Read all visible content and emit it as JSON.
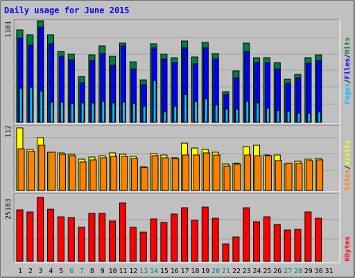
{
  "chart_data": {
    "type": "bar",
    "title": "Daily usage for June 2015",
    "categories": [
      "1",
      "2",
      "3",
      "4",
      "5",
      "6",
      "7",
      "8",
      "9",
      "10",
      "11",
      "12",
      "13",
      "14",
      "15",
      "16",
      "17",
      "18",
      "19",
      "20",
      "21",
      "22",
      "23",
      "24",
      "25",
      "26",
      "27",
      "28",
      "29",
      "30",
      "31"
    ],
    "weekend_days": [
      "6",
      "7",
      "13",
      "14",
      "20",
      "21",
      "27",
      "28"
    ],
    "panels": [
      {
        "name": "hits-files-pages",
        "ymax_label": "1101",
        "legend": [
          {
            "label": "Pages",
            "color": "#00C0FF"
          },
          {
            "label": "Files",
            "color": "#0000FF"
          },
          {
            "label": "Hits",
            "color": "#008040"
          }
        ],
        "series": [
          {
            "name": "Hits",
            "color": "#008040",
            "values": [
              1001,
              948,
              1101,
              953,
              768,
              738,
              500,
              730,
              830,
              713,
              860,
              658,
              458,
              853,
              740,
              703,
              880,
              710,
              870,
              750,
              330,
              560,
              860,
              700,
              700,
              650,
              470,
              520,
              700,
              730,
              0
            ]
          },
          {
            "name": "Files",
            "color": "#0000FF",
            "values": [
              915,
              840,
              1030,
              850,
              720,
              680,
              430,
              670,
              750,
              620,
              830,
              580,
              410,
              810,
              690,
              650,
              810,
              630,
              810,
              690,
              300,
              480,
              770,
              650,
              650,
              580,
              420,
              480,
              640,
              670,
              0
            ]
          },
          {
            "name": "Pages",
            "color": "#00C0FF",
            "values": [
              370,
              380,
              340,
              220,
              220,
              200,
              210,
              210,
              230,
              210,
              220,
              200,
              170,
              450,
              110,
              170,
              300,
              230,
              260,
              190,
              140,
              140,
              230,
              210,
              150,
              130,
              120,
              100,
              100,
              110,
              0
            ]
          }
        ]
      },
      {
        "name": "sites-visits",
        "ymax_label": "112",
        "legend": [
          {
            "label": "Sites",
            "color": "#FF8000"
          },
          {
            "label": "Visits",
            "color": "#FFFF00"
          }
        ],
        "series": [
          {
            "name": "Visits",
            "color": "#FFFF00",
            "values": [
              112,
              73,
              95,
              69,
              67,
              65,
              56,
              60,
              62,
              67,
              65,
              61,
              42,
              66,
              63,
              58,
              84,
              76,
              73,
              69,
              47,
              48,
              78,
              81,
              63,
              63,
              47,
              52,
              56,
              57,
              0
            ]
          },
          {
            "name": "Sites",
            "color": "#FF8000",
            "values": [
              75,
              70,
              81,
              68,
              65,
              62,
              51,
              55,
              59,
              61,
              61,
              57,
              41,
              62,
              58,
              57,
              64,
              64,
              67,
              64,
              44,
              47,
              64,
              62,
              62,
              53,
              49,
              49,
              54,
              55,
              0
            ]
          }
        ]
      },
      {
        "name": "kbytes",
        "ymax_label": "25183",
        "legend": [
          {
            "label": "KBytes",
            "color": "#FF0000"
          }
        ],
        "series": [
          {
            "name": "KBytes",
            "color": "#FF0000",
            "values": [
              20200,
              19400,
              25183,
              20600,
              17600,
              17300,
              13400,
              19000,
              18800,
              15800,
              22900,
              13400,
              11500,
              16800,
              15200,
              18600,
              21100,
              16200,
              21300,
              16900,
              6800,
              9500,
              21000,
              15600,
              17400,
              14500,
              12200,
              12700,
              19400,
              17100,
              0
            ]
          }
        ]
      }
    ]
  }
}
